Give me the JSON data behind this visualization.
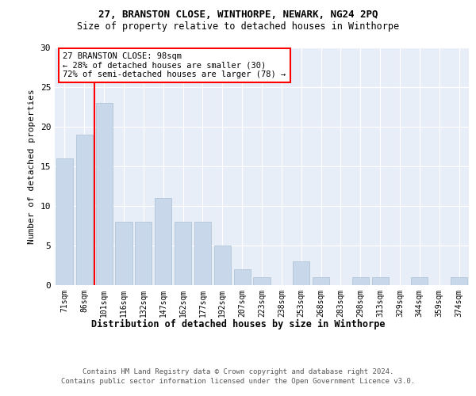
{
  "title1": "27, BRANSTON CLOSE, WINTHORPE, NEWARK, NG24 2PQ",
  "title2": "Size of property relative to detached houses in Winthorpe",
  "xlabel": "Distribution of detached houses by size in Winthorpe",
  "ylabel": "Number of detached properties",
  "categories": [
    "71sqm",
    "86sqm",
    "101sqm",
    "116sqm",
    "132sqm",
    "147sqm",
    "162sqm",
    "177sqm",
    "192sqm",
    "207sqm",
    "223sqm",
    "238sqm",
    "253sqm",
    "268sqm",
    "283sqm",
    "298sqm",
    "313sqm",
    "329sqm",
    "344sqm",
    "359sqm",
    "374sqm"
  ],
  "values": [
    16,
    19,
    23,
    8,
    8,
    11,
    8,
    8,
    5,
    2,
    1,
    0,
    3,
    1,
    0,
    1,
    1,
    0,
    1,
    0,
    1
  ],
  "bar_color": "#c8d8ea",
  "bar_edge_color": "#a8c0d4",
  "redline_x": 1.5,
  "annotation_text": "27 BRANSTON CLOSE: 98sqm\n← 28% of detached houses are smaller (30)\n72% of semi-detached houses are larger (78) →",
  "annotation_box_color": "white",
  "annotation_box_edge": "red",
  "ylim": [
    0,
    30
  ],
  "yticks": [
    0,
    5,
    10,
    15,
    20,
    25,
    30
  ],
  "background_color": "#e8eef8",
  "grid_color": "white",
  "footer1": "Contains HM Land Registry data © Crown copyright and database right 2024.",
  "footer2": "Contains public sector information licensed under the Open Government Licence v3.0."
}
